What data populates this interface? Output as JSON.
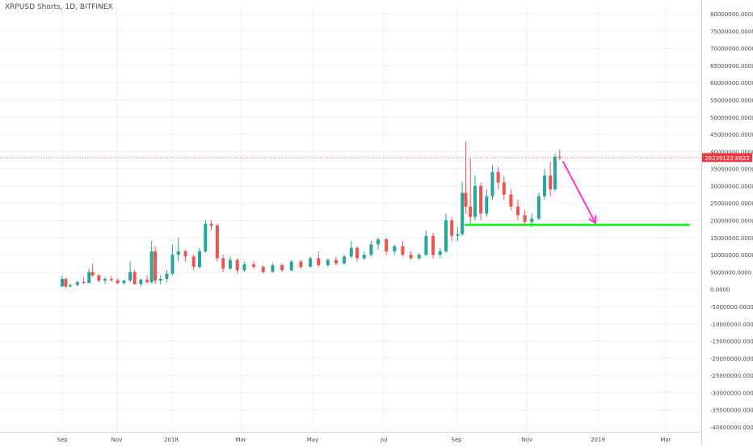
{
  "chart_data": {
    "type": "candlestick",
    "title": "XRPUSD Shorts, 1D, BITFINEX",
    "grid": true,
    "y_axis": {
      "position": "right",
      "range": [
        -40000000,
        80000000
      ],
      "tick_values": [
        80000000,
        75000000,
        70000000,
        65000000,
        60000000,
        55000000,
        50000000,
        45000000,
        40000000,
        35000000,
        30000000,
        25000000,
        20000000,
        15000000,
        10000000,
        5000000,
        0,
        -5000000,
        -10000000,
        -15000000,
        -20000000,
        -25000000,
        -30000000,
        -35000000,
        -40000000
      ],
      "tick_labels": [
        "80000000.0000",
        "75000000.0000",
        "70000000.0000",
        "65000000.0000",
        "60000000.0000",
        "55000000.0000",
        "50000000.0000",
        "45000000.0000",
        "40000000.0000",
        "35000000.0000",
        "30000000.0000",
        "25000000.0000",
        "20000000.0000",
        "15000000.0000",
        "10000000.0000",
        "5000000.0000",
        "0.0000",
        "-5000000.0000",
        "-10000000.0000",
        "-15000000.0000",
        "-20000000.0000",
        "-25000000.0000",
        "-30000000.0000",
        "-35000000.0000",
        "-40000000.0000"
      ]
    },
    "x_axis": {
      "range": [
        "2017-08-16",
        "2019-03-30"
      ],
      "ticks": [
        {
          "date": "2017-09-01",
          "label": "Sep"
        },
        {
          "date": "2017-11-01",
          "label": "Nov"
        },
        {
          "date": "2018-01-01",
          "label": "2018"
        },
        {
          "date": "2018-03-01",
          "label": "Mar"
        },
        {
          "date": "2018-05-01",
          "label": "May"
        },
        {
          "date": "2018-07-01",
          "label": "Jul"
        },
        {
          "date": "2018-09-01",
          "label": "Sep"
        },
        {
          "date": "2018-11-01",
          "label": "Nov"
        },
        {
          "date": "2019-01-01",
          "label": "2019"
        },
        {
          "date": "2019-03-01",
          "label": "Mar"
        }
      ]
    },
    "last_price": {
      "value": 38239122.8822,
      "label": "38239122.8822",
      "color": "#f0393e"
    },
    "colors": {
      "up": "#26a69a",
      "down": "#ef5350",
      "grid": "#eef0f3",
      "axis_text": "#4a4a4a"
    },
    "candles": [
      {
        "date": "2017-09-01",
        "open": 800000,
        "high": 4000000,
        "low": 500000,
        "close": 3000000
      },
      {
        "date": "2017-09-05",
        "open": 3000000,
        "high": 3500000,
        "low": 300000,
        "close": 800000
      },
      {
        "date": "2017-09-10",
        "open": 800000,
        "high": 1500000,
        "low": 500000,
        "close": 1200000
      },
      {
        "date": "2017-09-18",
        "open": 1200000,
        "high": 2500000,
        "low": 900000,
        "close": 2100000
      },
      {
        "date": "2017-09-25",
        "open": 2100000,
        "high": 3500000,
        "low": 1500000,
        "close": 1800000
      },
      {
        "date": "2017-10-01",
        "open": 1800000,
        "high": 6000000,
        "low": 1700000,
        "close": 5000000
      },
      {
        "date": "2017-10-05",
        "open": 5000000,
        "high": 7500000,
        "low": 3500000,
        "close": 4000000
      },
      {
        "date": "2017-10-12",
        "open": 4000000,
        "high": 4500000,
        "low": 2000000,
        "close": 2500000
      },
      {
        "date": "2017-10-19",
        "open": 2500000,
        "high": 3500000,
        "low": 1500000,
        "close": 3000000
      },
      {
        "date": "2017-10-26",
        "open": 3000000,
        "high": 3800000,
        "low": 2200000,
        "close": 2600000
      },
      {
        "date": "2017-11-02",
        "open": 2600000,
        "high": 3200000,
        "low": 1500000,
        "close": 1800000
      },
      {
        "date": "2017-11-09",
        "open": 1800000,
        "high": 2800000,
        "low": 1200000,
        "close": 2500000
      },
      {
        "date": "2017-11-16",
        "open": 2500000,
        "high": 8000000,
        "low": 2000000,
        "close": 5000000
      },
      {
        "date": "2017-11-21",
        "open": 5000000,
        "high": 5500000,
        "low": 1200000,
        "close": 1500000
      },
      {
        "date": "2017-11-28",
        "open": 1500000,
        "high": 3000000,
        "low": 800000,
        "close": 2800000
      },
      {
        "date": "2017-12-05",
        "open": 2800000,
        "high": 4000000,
        "low": 1800000,
        "close": 2000000
      },
      {
        "date": "2017-12-10",
        "open": 2000000,
        "high": 14000000,
        "low": 1800000,
        "close": 11000000
      },
      {
        "date": "2017-12-14",
        "open": 11000000,
        "high": 12500000,
        "low": 1500000,
        "close": 2500000
      },
      {
        "date": "2017-12-20",
        "open": 2500000,
        "high": 4000000,
        "low": 1500000,
        "close": 3000000
      },
      {
        "date": "2017-12-27",
        "open": 3000000,
        "high": 5500000,
        "low": 2000000,
        "close": 4500000
      },
      {
        "date": "2018-01-02",
        "open": 4500000,
        "high": 13000000,
        "low": 4000000,
        "close": 10000000
      },
      {
        "date": "2018-01-07",
        "open": 10000000,
        "high": 15000000,
        "low": 8000000,
        "close": 11000000
      },
      {
        "date": "2018-01-13",
        "open": 11000000,
        "high": 11500000,
        "low": 8000000,
        "close": 9500000
      },
      {
        "date": "2018-01-20",
        "open": 9500000,
        "high": 10000000,
        "low": 5500000,
        "close": 6500000
      },
      {
        "date": "2018-01-25",
        "open": 6500000,
        "high": 12000000,
        "low": 6000000,
        "close": 11000000
      },
      {
        "date": "2018-01-30",
        "open": 11000000,
        "high": 20000000,
        "low": 10500000,
        "close": 19000000
      },
      {
        "date": "2018-02-04",
        "open": 19000000,
        "high": 20000000,
        "low": 17000000,
        "close": 18500000
      },
      {
        "date": "2018-02-09",
        "open": 18500000,
        "high": 19000000,
        "low": 8000000,
        "close": 9000000
      },
      {
        "date": "2018-02-14",
        "open": 9000000,
        "high": 10000000,
        "low": 5000000,
        "close": 6000000
      },
      {
        "date": "2018-02-20",
        "open": 6000000,
        "high": 9500000,
        "low": 5500000,
        "close": 8500000
      },
      {
        "date": "2018-02-26",
        "open": 8500000,
        "high": 9000000,
        "low": 4500000,
        "close": 5500000
      },
      {
        "date": "2018-03-04",
        "open": 5500000,
        "high": 8000000,
        "low": 5000000,
        "close": 7200000
      },
      {
        "date": "2018-03-12",
        "open": 7200000,
        "high": 8200000,
        "low": 6000000,
        "close": 6500000
      },
      {
        "date": "2018-03-20",
        "open": 6500000,
        "high": 7000000,
        "low": 4500000,
        "close": 5000000
      },
      {
        "date": "2018-03-28",
        "open": 5000000,
        "high": 7500000,
        "low": 4800000,
        "close": 7000000
      },
      {
        "date": "2018-04-05",
        "open": 7000000,
        "high": 7500000,
        "low": 5000000,
        "close": 5500000
      },
      {
        "date": "2018-04-13",
        "open": 5500000,
        "high": 8500000,
        "low": 5200000,
        "close": 8000000
      },
      {
        "date": "2018-04-21",
        "open": 8000000,
        "high": 8500000,
        "low": 6000000,
        "close": 6500000
      },
      {
        "date": "2018-04-29",
        "open": 6500000,
        "high": 9500000,
        "low": 6200000,
        "close": 9000000
      },
      {
        "date": "2018-05-06",
        "open": 9000000,
        "high": 11000000,
        "low": 6500000,
        "close": 7000000
      },
      {
        "date": "2018-05-14",
        "open": 7000000,
        "high": 9000000,
        "low": 6500000,
        "close": 8500000
      },
      {
        "date": "2018-05-21",
        "open": 8500000,
        "high": 9500000,
        "low": 7000000,
        "close": 7500000
      },
      {
        "date": "2018-05-28",
        "open": 7500000,
        "high": 10000000,
        "low": 7200000,
        "close": 9500000
      },
      {
        "date": "2018-06-03",
        "open": 9500000,
        "high": 14000000,
        "low": 9000000,
        "close": 12000000
      },
      {
        "date": "2018-06-08",
        "open": 12000000,
        "high": 12500000,
        "low": 8000000,
        "close": 9000000
      },
      {
        "date": "2018-06-14",
        "open": 9000000,
        "high": 11000000,
        "low": 8500000,
        "close": 10000000
      },
      {
        "date": "2018-06-20",
        "open": 10000000,
        "high": 14000000,
        "low": 9500000,
        "close": 13000000
      },
      {
        "date": "2018-06-26",
        "open": 13000000,
        "high": 15000000,
        "low": 11500000,
        "close": 14500000
      },
      {
        "date": "2018-07-03",
        "open": 14500000,
        "high": 15000000,
        "low": 10000000,
        "close": 11000000
      },
      {
        "date": "2018-07-10",
        "open": 11000000,
        "high": 13000000,
        "low": 10000000,
        "close": 12500000
      },
      {
        "date": "2018-07-17",
        "open": 12500000,
        "high": 14000000,
        "low": 9500000,
        "close": 10000000
      },
      {
        "date": "2018-07-24",
        "open": 10000000,
        "high": 11000000,
        "low": 8500000,
        "close": 9000000
      },
      {
        "date": "2018-07-31",
        "open": 9000000,
        "high": 10500000,
        "low": 8500000,
        "close": 10000000
      },
      {
        "date": "2018-08-06",
        "open": 10000000,
        "high": 17000000,
        "low": 9500000,
        "close": 15500000
      },
      {
        "date": "2018-08-12",
        "open": 15500000,
        "high": 16500000,
        "low": 9000000,
        "close": 10000000
      },
      {
        "date": "2018-08-18",
        "open": 10000000,
        "high": 12000000,
        "low": 9000000,
        "close": 11000000
      },
      {
        "date": "2018-08-23",
        "open": 11000000,
        "high": 22000000,
        "low": 10500000,
        "close": 20000000
      },
      {
        "date": "2018-08-28",
        "open": 20000000,
        "high": 21000000,
        "low": 14000000,
        "close": 15500000
      },
      {
        "date": "2018-09-02",
        "open": 15500000,
        "high": 18000000,
        "low": 14000000,
        "close": 16000000
      },
      {
        "date": "2018-09-06",
        "open": 16000000,
        "high": 31000000,
        "low": 15500000,
        "close": 28000000
      },
      {
        "date": "2018-09-09",
        "open": 28000000,
        "high": 43000000,
        "low": 22000000,
        "close": 24000000
      },
      {
        "date": "2018-09-13",
        "open": 24000000,
        "high": 38000000,
        "low": 19000000,
        "close": 21000000
      },
      {
        "date": "2018-09-17",
        "open": 21000000,
        "high": 33000000,
        "low": 20000000,
        "close": 30000000
      },
      {
        "date": "2018-09-22",
        "open": 30000000,
        "high": 31000000,
        "low": 20000000,
        "close": 22000000
      },
      {
        "date": "2018-09-27",
        "open": 22000000,
        "high": 29000000,
        "low": 21000000,
        "close": 27000000
      },
      {
        "date": "2018-10-02",
        "open": 27000000,
        "high": 36000000,
        "low": 26000000,
        "close": 34000000
      },
      {
        "date": "2018-10-07",
        "open": 34000000,
        "high": 35500000,
        "low": 29000000,
        "close": 31000000
      },
      {
        "date": "2018-10-12",
        "open": 31000000,
        "high": 33000000,
        "low": 26000000,
        "close": 27500000
      },
      {
        "date": "2018-10-18",
        "open": 27500000,
        "high": 29000000,
        "low": 23000000,
        "close": 24000000
      },
      {
        "date": "2018-10-24",
        "open": 24000000,
        "high": 26000000,
        "low": 20000000,
        "close": 21500000
      },
      {
        "date": "2018-10-30",
        "open": 21500000,
        "high": 23000000,
        "low": 18500000,
        "close": 19500000
      },
      {
        "date": "2018-11-05",
        "open": 19500000,
        "high": 22000000,
        "low": 18000000,
        "close": 20500000
      },
      {
        "date": "2018-11-11",
        "open": 20500000,
        "high": 28000000,
        "low": 20000000,
        "close": 27000000
      },
      {
        "date": "2018-11-16",
        "open": 27000000,
        "high": 35000000,
        "low": 26000000,
        "close": 33000000
      },
      {
        "date": "2018-11-21",
        "open": 33000000,
        "high": 37000000,
        "low": 27000000,
        "close": 29000000
      },
      {
        "date": "2018-11-25",
        "open": 29000000,
        "high": 39500000,
        "low": 28500000,
        "close": 38500000
      },
      {
        "date": "2018-11-29",
        "open": 38500000,
        "high": 40500000,
        "low": 37500000,
        "close": 38239122.8822
      }
    ],
    "annotations": [
      {
        "type": "horizontal_segment",
        "color": "#00ff00",
        "value": 18700000,
        "x_start": "2018-09-08",
        "x_end": "2019-03-22"
      },
      {
        "type": "arrow",
        "color": "#ff33cc",
        "from": {
          "date": "2018-12-02",
          "value": 37000000
        },
        "to": {
          "date": "2018-12-30",
          "value": 19200000
        }
      }
    ]
  }
}
